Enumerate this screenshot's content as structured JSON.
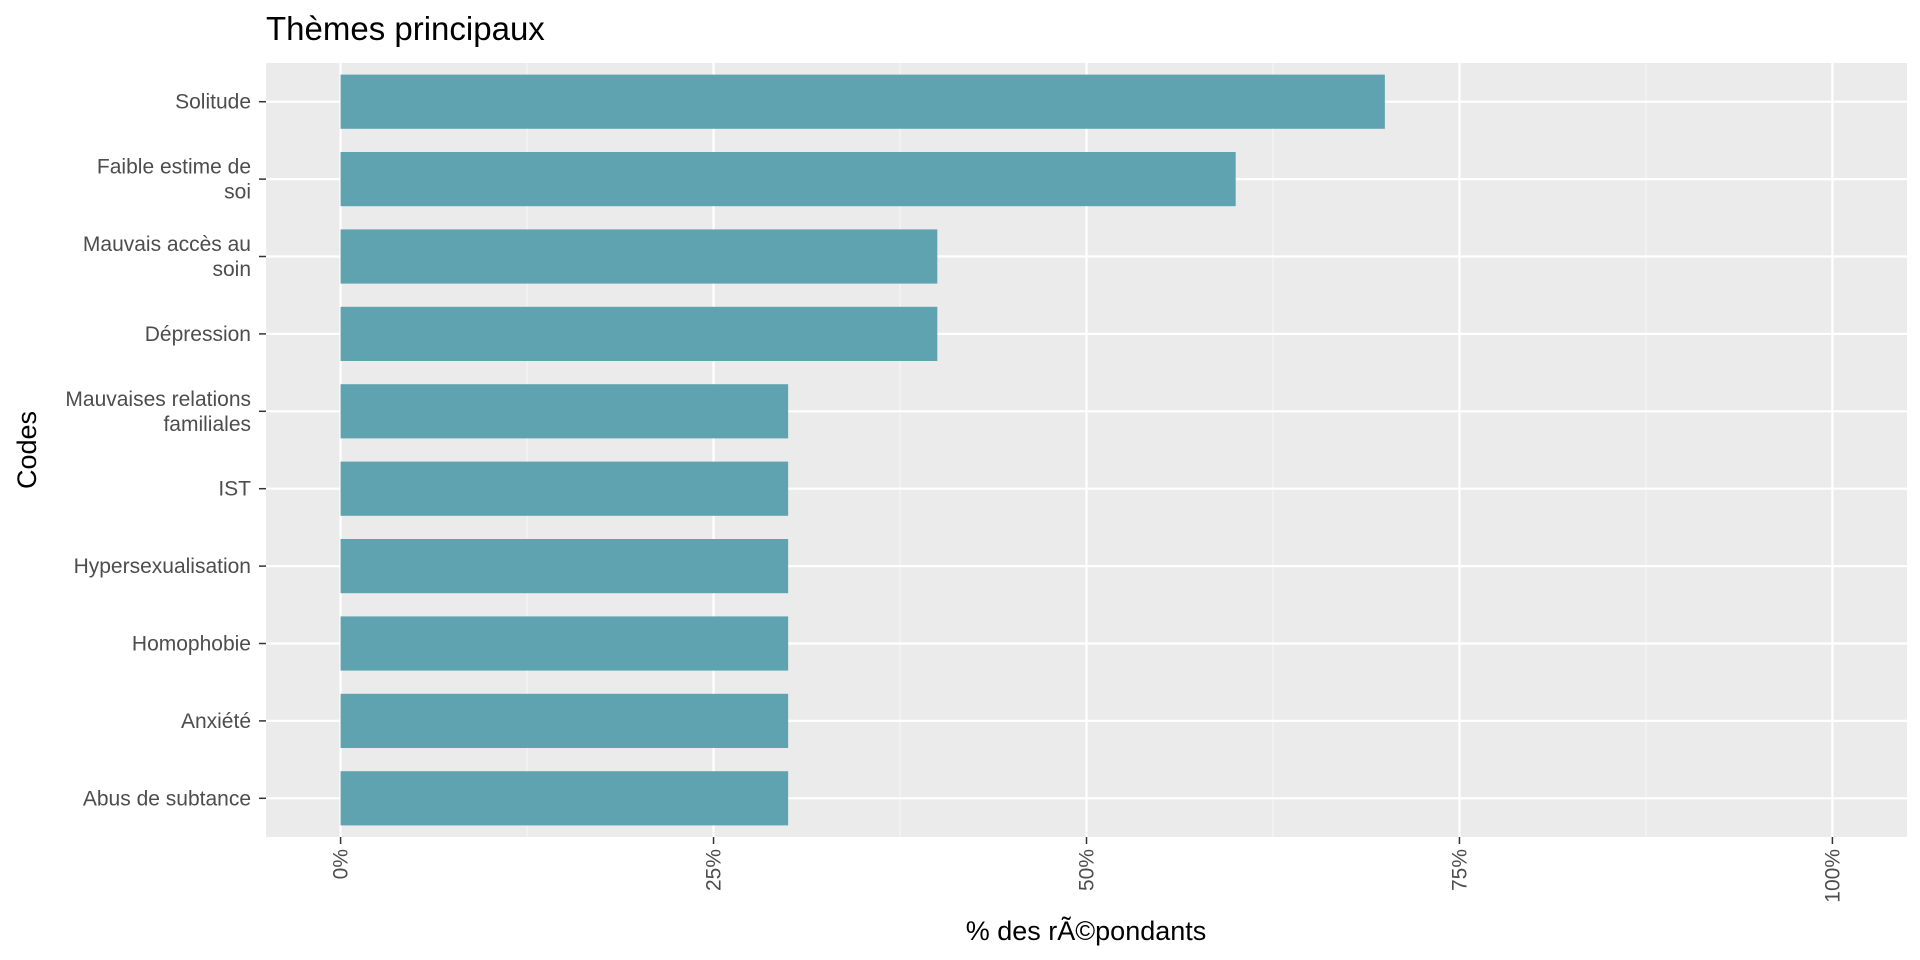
{
  "chart_data": {
    "type": "bar",
    "orientation": "horizontal",
    "title": "Thèmes principaux",
    "xlabel": "% des rÃ©pondants",
    "ylabel": "Codes",
    "categories": [
      [
        "Solitude"
      ],
      [
        "Faible estime de",
        "soi"
      ],
      [
        "Mauvais accès au",
        "soin"
      ],
      [
        "Dépression"
      ],
      [
        "Mauvaises relations",
        "familiales"
      ],
      [
        "IST"
      ],
      [
        "Hypersexualisation"
      ],
      [
        "Homophobie"
      ],
      [
        "Anxiété"
      ],
      [
        "Abus de subtance"
      ]
    ],
    "values": [
      70,
      60,
      40,
      40,
      30,
      30,
      30,
      30,
      30,
      30
    ],
    "xlim": [
      -5,
      105
    ],
    "x_ticks": [
      0,
      25,
      50,
      75,
      100
    ],
    "x_tick_labels": [
      "0%",
      "25%",
      "50%",
      "75%",
      "100%"
    ],
    "grid": true,
    "colors": {
      "bar": "#5fa3b0",
      "panel": "#ebebeb",
      "grid_major": "#ffffff",
      "grid_minor": "#f5f5f5"
    }
  }
}
